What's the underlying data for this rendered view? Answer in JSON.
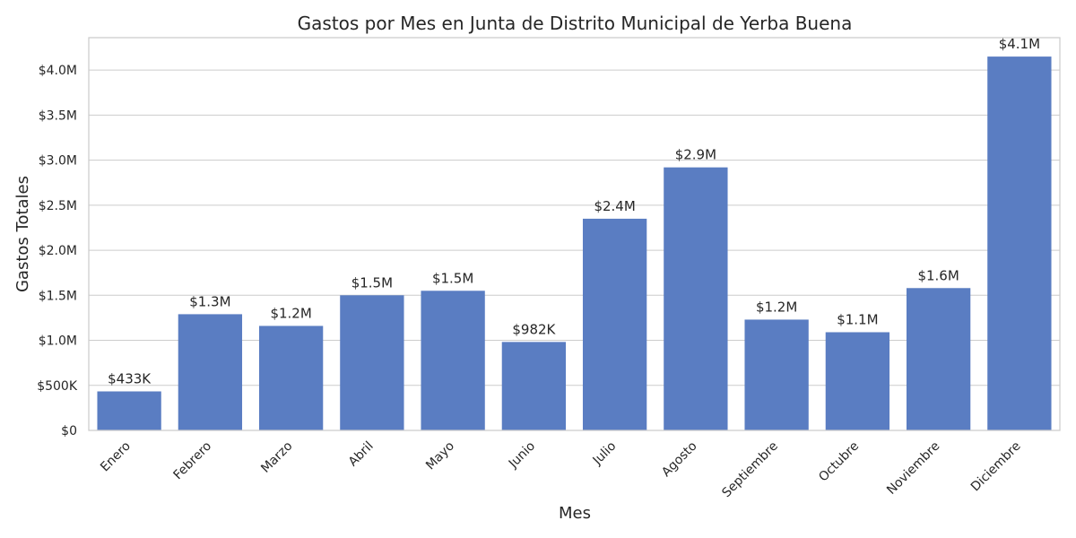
{
  "chart_data": {
    "type": "bar",
    "title": "Gastos por Mes en Junta de Distrito Municipal de Yerba Buena",
    "xlabel": "Mes",
    "ylabel": "Gastos Totales",
    "categories": [
      "Enero",
      "Febrero",
      "Marzo",
      "Abril",
      "Mayo",
      "Junio",
      "Julio",
      "Agosto",
      "Septiembre",
      "Octubre",
      "Noviembre",
      "Diciembre"
    ],
    "values": [
      433000,
      1290000,
      1160000,
      1500000,
      1550000,
      982000,
      2350000,
      2920000,
      1230000,
      1090000,
      1580000,
      4150000
    ],
    "data_labels": [
      "$433K",
      "$1.3M",
      "$1.2M",
      "$1.5M",
      "$1.5M",
      "$982K",
      "$2.4M",
      "$2.9M",
      "$1.2M",
      "$1.1M",
      "$1.6M",
      "$4.1M"
    ],
    "ylim": [
      0,
      4360000
    ],
    "yticks": [
      0,
      500000,
      1000000,
      1500000,
      2000000,
      2500000,
      3000000,
      3500000,
      4000000
    ],
    "ytick_labels": [
      "$0",
      "$500K",
      "$1.0M",
      "$1.5M",
      "$2.0M",
      "$2.5M",
      "$3.0M",
      "$3.5M",
      "$4.0M"
    ],
    "grid": true,
    "legend": "none",
    "colors": {
      "bar": "#5a7dc2",
      "grid": "#cccccc",
      "text": "#262626",
      "background": "#ffffff"
    }
  }
}
